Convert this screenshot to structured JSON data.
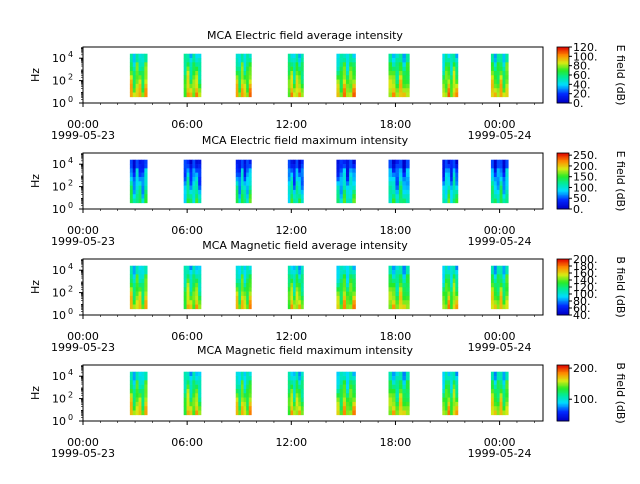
{
  "chart_data": [
    {
      "type": "heatmap",
      "title": "MCA  Electric field average intensity",
      "ylabel": "Hz",
      "yscale": "log",
      "y_ticks": [
        "10^0",
        "10^2",
        "10^4"
      ],
      "y_tick_base": [
        "10",
        "10",
        "10"
      ],
      "y_tick_exp": [
        "0",
        "2",
        "4"
      ],
      "xlim": [
        "1999-05-23T00:00",
        "1999-05-24T02:30"
      ],
      "x_ticks": [
        "00:00",
        "06:00",
        "12:00",
        "18:00",
        "00:00"
      ],
      "x_dates": [
        "1999-05-23",
        "1999-05-24"
      ],
      "colorbar_label": "E field (dB)",
      "colorbar_range": [
        0,
        120
      ],
      "colorbar_ticks": [
        "120.",
        "100.",
        "80.",
        "60.",
        "40.",
        "20.",
        "0."
      ],
      "colorbar_tick_values": [
        120,
        100,
        80,
        60,
        40,
        20,
        0
      ],
      "passes_hours": [
        [
          2.7,
          3.7
        ],
        [
          5.8,
          6.8
        ],
        [
          8.8,
          9.7
        ],
        [
          11.8,
          12.7
        ],
        [
          14.6,
          15.7
        ],
        [
          17.6,
          18.8
        ],
        [
          20.7,
          21.6
        ],
        [
          23.5,
          24.5
        ]
      ],
      "level": 0.58
    },
    {
      "type": "heatmap",
      "title": "MCA  Electric field maximum intensity",
      "ylabel": "Hz",
      "yscale": "log",
      "y_ticks": [
        "10^0",
        "10^2",
        "10^4"
      ],
      "y_tick_base": [
        "10",
        "10",
        "10"
      ],
      "y_tick_exp": [
        "0",
        "2",
        "4"
      ],
      "xlim": [
        "1999-05-23T00:00",
        "1999-05-24T02:30"
      ],
      "x_ticks": [
        "00:00",
        "06:00",
        "12:00",
        "18:00",
        "00:00"
      ],
      "x_dates": [
        "1999-05-23",
        "1999-05-24"
      ],
      "colorbar_label": "E field (dB)",
      "colorbar_range": [
        0,
        260
      ],
      "colorbar_ticks": [
        "250.",
        "200.",
        "150.",
        "100.",
        "50.",
        "0."
      ],
      "colorbar_tick_values": [
        250,
        200,
        150,
        100,
        50,
        0
      ],
      "passes_hours": [
        [
          2.7,
          3.7
        ],
        [
          5.8,
          6.8
        ],
        [
          8.8,
          9.7
        ],
        [
          11.8,
          12.7
        ],
        [
          14.6,
          15.7
        ],
        [
          17.6,
          18.8
        ],
        [
          20.7,
          21.6
        ],
        [
          23.5,
          24.5
        ]
      ],
      "level": 0.3
    },
    {
      "type": "heatmap",
      "title": "MCA  Magnetic field average intensity",
      "ylabel": "Hz",
      "yscale": "log",
      "y_ticks": [
        "10^0",
        "10^2",
        "10^4"
      ],
      "y_tick_base": [
        "10",
        "10",
        "10"
      ],
      "y_tick_exp": [
        "0",
        "2",
        "4"
      ],
      "xlim": [
        "1999-05-23T00:00",
        "1999-05-24T02:30"
      ],
      "x_ticks": [
        "00:00",
        "06:00",
        "12:00",
        "18:00",
        "00:00"
      ],
      "x_dates": [
        "1999-05-23",
        "1999-05-24"
      ],
      "colorbar_label": "B field (dB)",
      "colorbar_range": [
        40,
        200
      ],
      "colorbar_ticks": [
        "200.",
        "180.",
        "160.",
        "140.",
        "120.",
        "100.",
        "80.",
        "60.",
        "40."
      ],
      "colorbar_tick_values": [
        200,
        180,
        160,
        140,
        120,
        100,
        80,
        60,
        40
      ],
      "passes_hours": [
        [
          2.7,
          3.7
        ],
        [
          5.8,
          6.8
        ],
        [
          8.8,
          9.7
        ],
        [
          11.8,
          12.7
        ],
        [
          14.6,
          15.7
        ],
        [
          17.6,
          18.8
        ],
        [
          20.7,
          21.6
        ],
        [
          23.5,
          24.5
        ]
      ],
      "level": 0.55
    },
    {
      "type": "heatmap",
      "title": "MCA  Magnetic field maximum intensity",
      "ylabel": "Hz",
      "yscale": "log",
      "y_ticks": [
        "10^0",
        "10^2",
        "10^4"
      ],
      "y_tick_base": [
        "10",
        "10",
        "10"
      ],
      "y_tick_exp": [
        "0",
        "2",
        "4"
      ],
      "xlim": [
        "1999-05-23T00:00",
        "1999-05-24T02:30"
      ],
      "x_ticks": [
        "00:00",
        "06:00",
        "12:00",
        "18:00",
        "00:00"
      ],
      "x_dates": [
        "1999-05-23",
        "1999-05-24"
      ],
      "colorbar_label": "B field (dB)",
      "colorbar_range": [
        30,
        210
      ],
      "colorbar_ticks": [
        "200.",
        "100."
      ],
      "colorbar_tick_values": [
        200,
        100
      ],
      "passes_hours": [
        [
          2.7,
          3.7
        ],
        [
          5.8,
          6.8
        ],
        [
          8.8,
          9.7
        ],
        [
          11.8,
          12.7
        ],
        [
          14.6,
          15.7
        ],
        [
          17.6,
          18.8
        ],
        [
          20.7,
          21.6
        ],
        [
          23.5,
          24.5
        ]
      ],
      "level": 0.55
    }
  ]
}
